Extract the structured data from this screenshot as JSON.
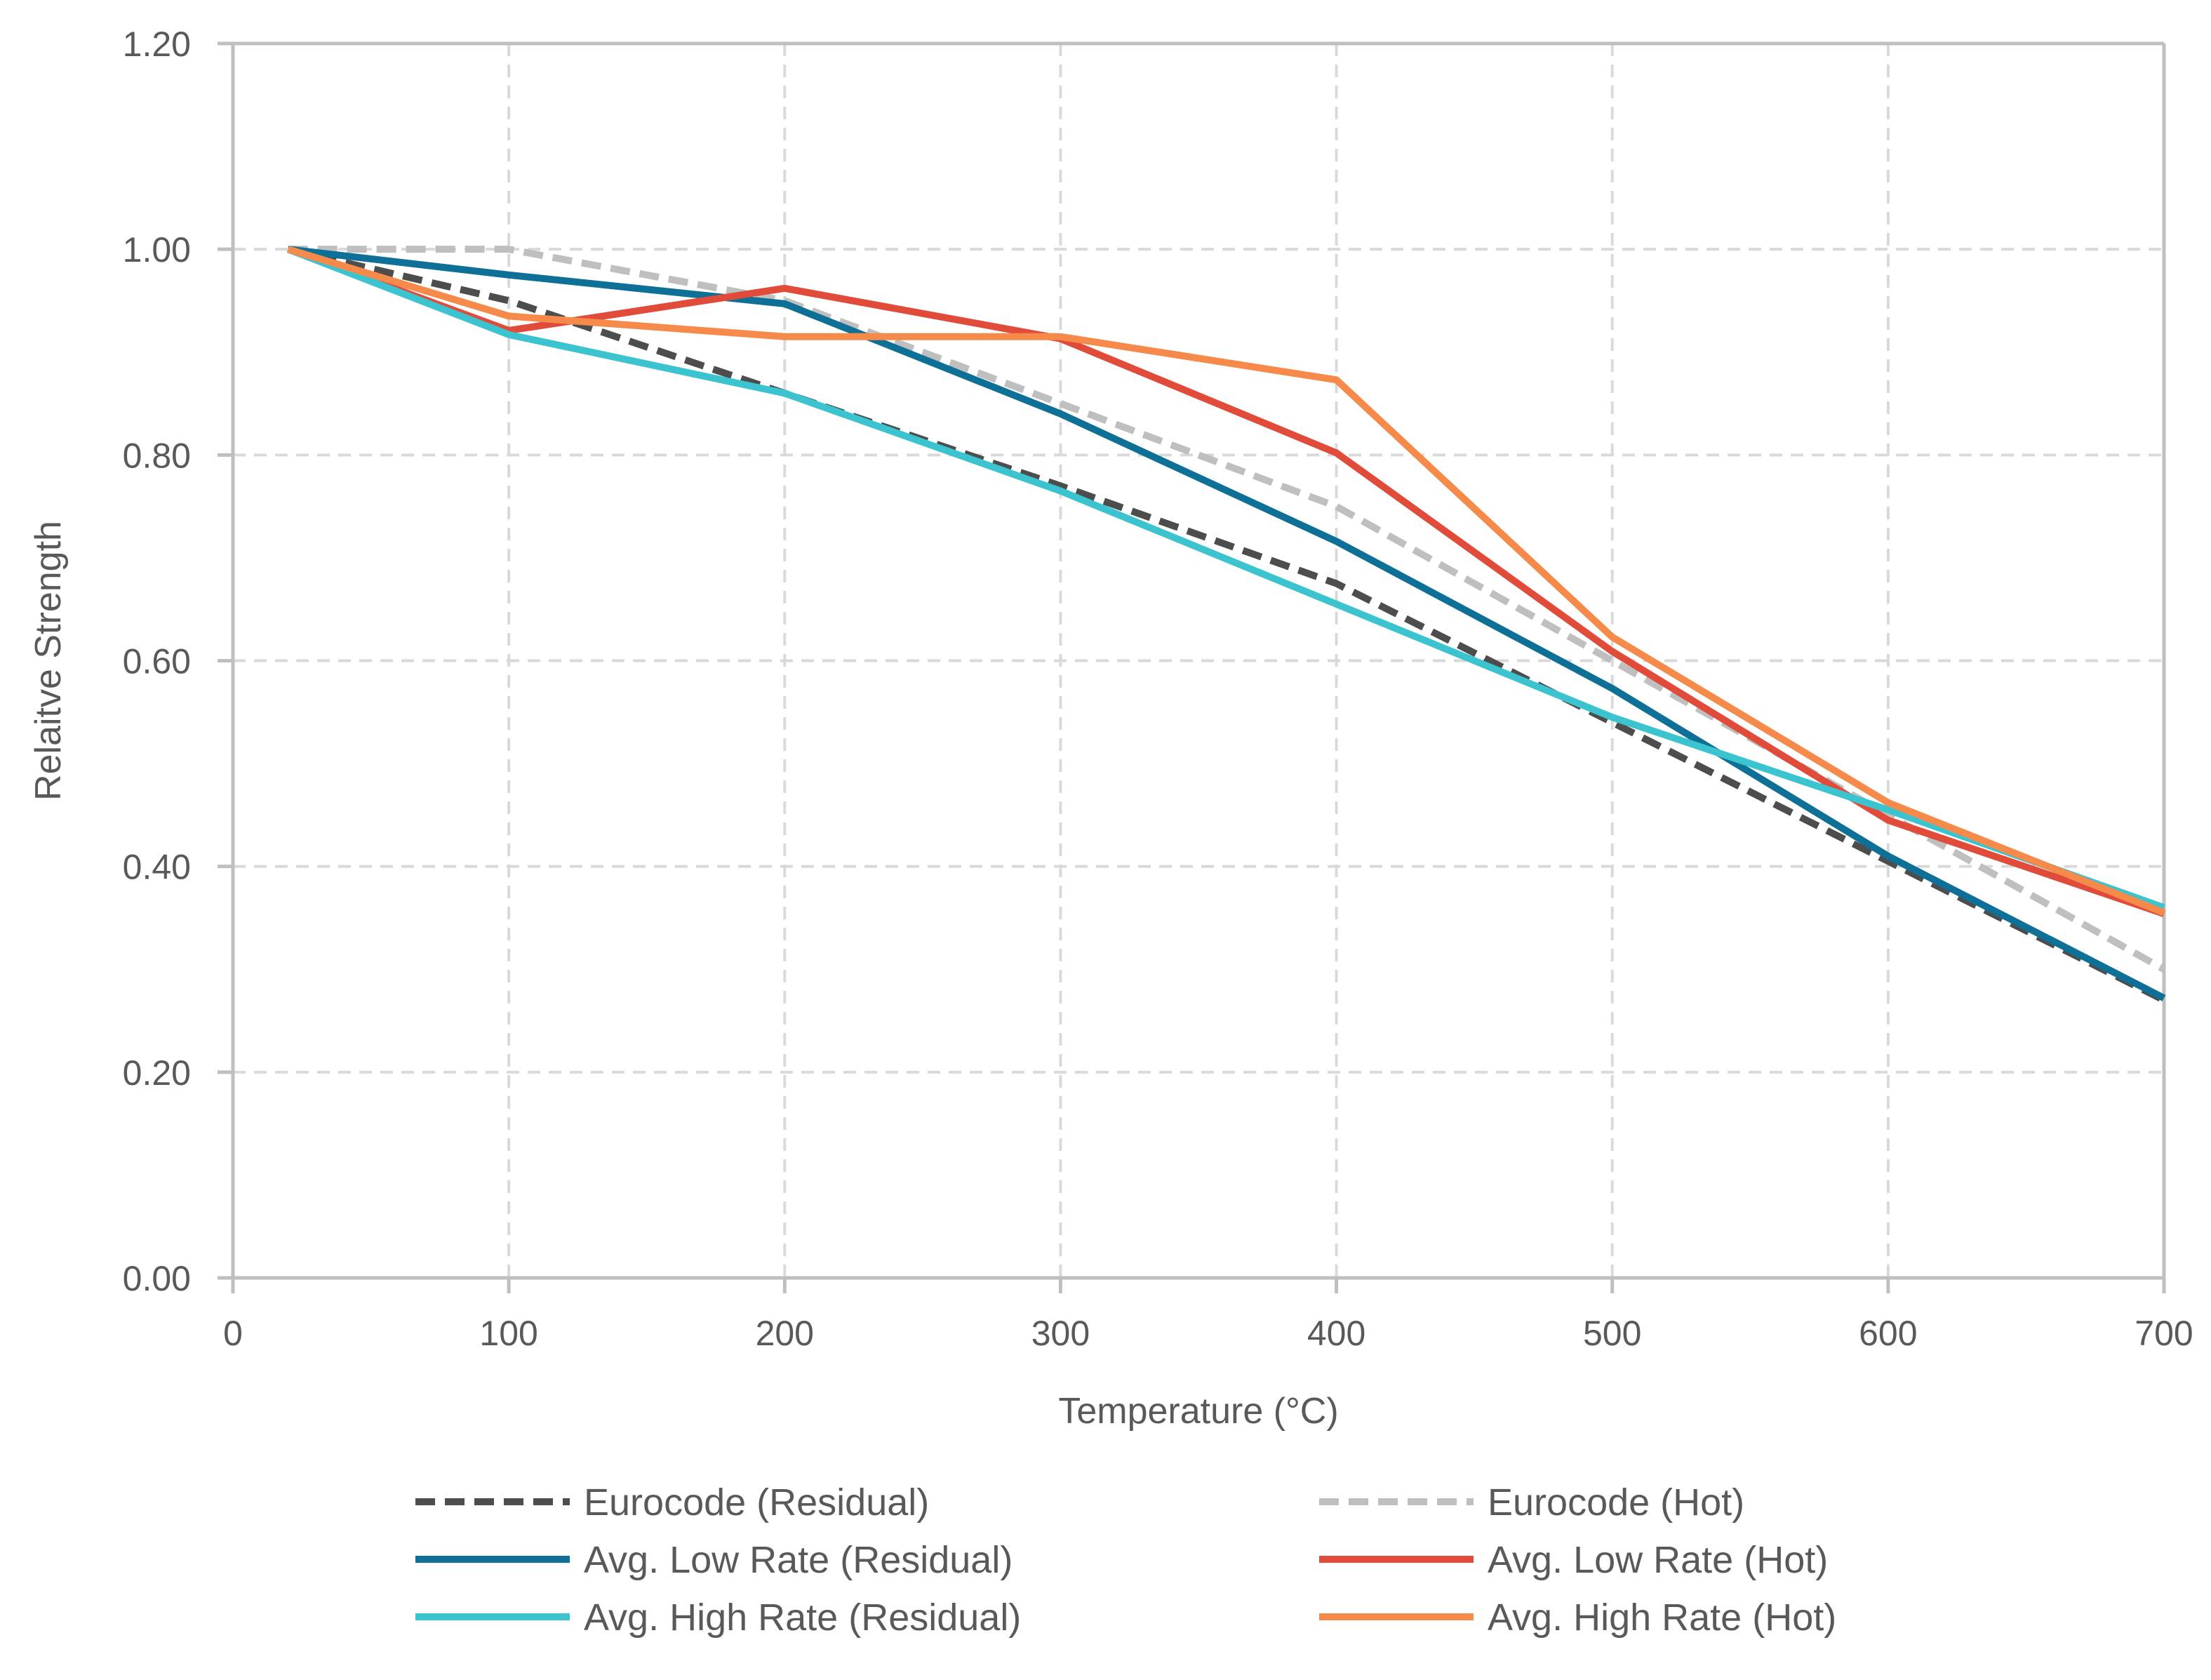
{
  "chart_data": {
    "type": "line",
    "title": "",
    "xlabel": "Temperature (°C)",
    "ylabel": "Relaitve Strength",
    "xlim": [
      0,
      700
    ],
    "ylim": [
      0,
      1.2
    ],
    "x_ticks": [
      0,
      100,
      200,
      300,
      400,
      500,
      600,
      700
    ],
    "y_ticks": [
      0,
      0.2,
      0.4,
      0.6,
      0.8,
      1.0,
      1.2
    ],
    "x_tick_labels": [
      "0",
      "100",
      "200",
      "300",
      "400",
      "500",
      "600",
      "700"
    ],
    "y_tick_labels": [
      "0.00",
      "0.20",
      "0.40",
      "0.60",
      "0.80",
      "1.00",
      "1.20"
    ],
    "grid": true,
    "legend_position": "bottom",
    "series": [
      {
        "name": "Eurocode (Residual)",
        "color": "#4d4d4d",
        "dashed": true,
        "x": [
          20,
          100,
          200,
          300,
          400,
          500,
          600,
          700
        ],
        "y": [
          1.0,
          0.95,
          0.86,
          0.77,
          0.675,
          0.54,
          0.405,
          0.27
        ]
      },
      {
        "name": "Eurocode (Hot)",
        "color": "#bfbfbf",
        "dashed": true,
        "x": [
          20,
          100,
          200,
          300,
          400,
          500,
          600,
          700
        ],
        "y": [
          1.0,
          1.0,
          0.95,
          0.85,
          0.75,
          0.6,
          0.45,
          0.3
        ]
      },
      {
        "name": "Avg. Low Rate (Residual)",
        "color": "#0e6f97",
        "dashed": false,
        "x": [
          20,
          100,
          200,
          300,
          400,
          500,
          600,
          700
        ],
        "y": [
          1.0,
          0.975,
          0.947,
          0.84,
          0.716,
          0.573,
          0.41,
          0.272
        ]
      },
      {
        "name": "Avg. Low Rate (Hot)",
        "color": "#e04b3a",
        "dashed": false,
        "x": [
          20,
          100,
          200,
          300,
          400,
          500,
          600,
          700
        ],
        "y": [
          1.0,
          0.921,
          0.962,
          0.913,
          0.802,
          0.609,
          0.445,
          0.354
        ]
      },
      {
        "name": "Avg. High Rate (Residual)",
        "color": "#3bc3cf",
        "dashed": false,
        "x": [
          20,
          100,
          200,
          300,
          400,
          500,
          600,
          700
        ],
        "y": [
          1.0,
          0.917,
          0.86,
          0.765,
          0.655,
          0.545,
          0.455,
          0.36
        ]
      },
      {
        "name": "Avg. High Rate (Hot)",
        "color": "#f58a4a",
        "dashed": false,
        "x": [
          20,
          100,
          200,
          300,
          400,
          500,
          600,
          700
        ],
        "y": [
          1.0,
          0.935,
          0.915,
          0.915,
          0.873,
          0.623,
          0.462,
          0.355
        ]
      }
    ]
  }
}
